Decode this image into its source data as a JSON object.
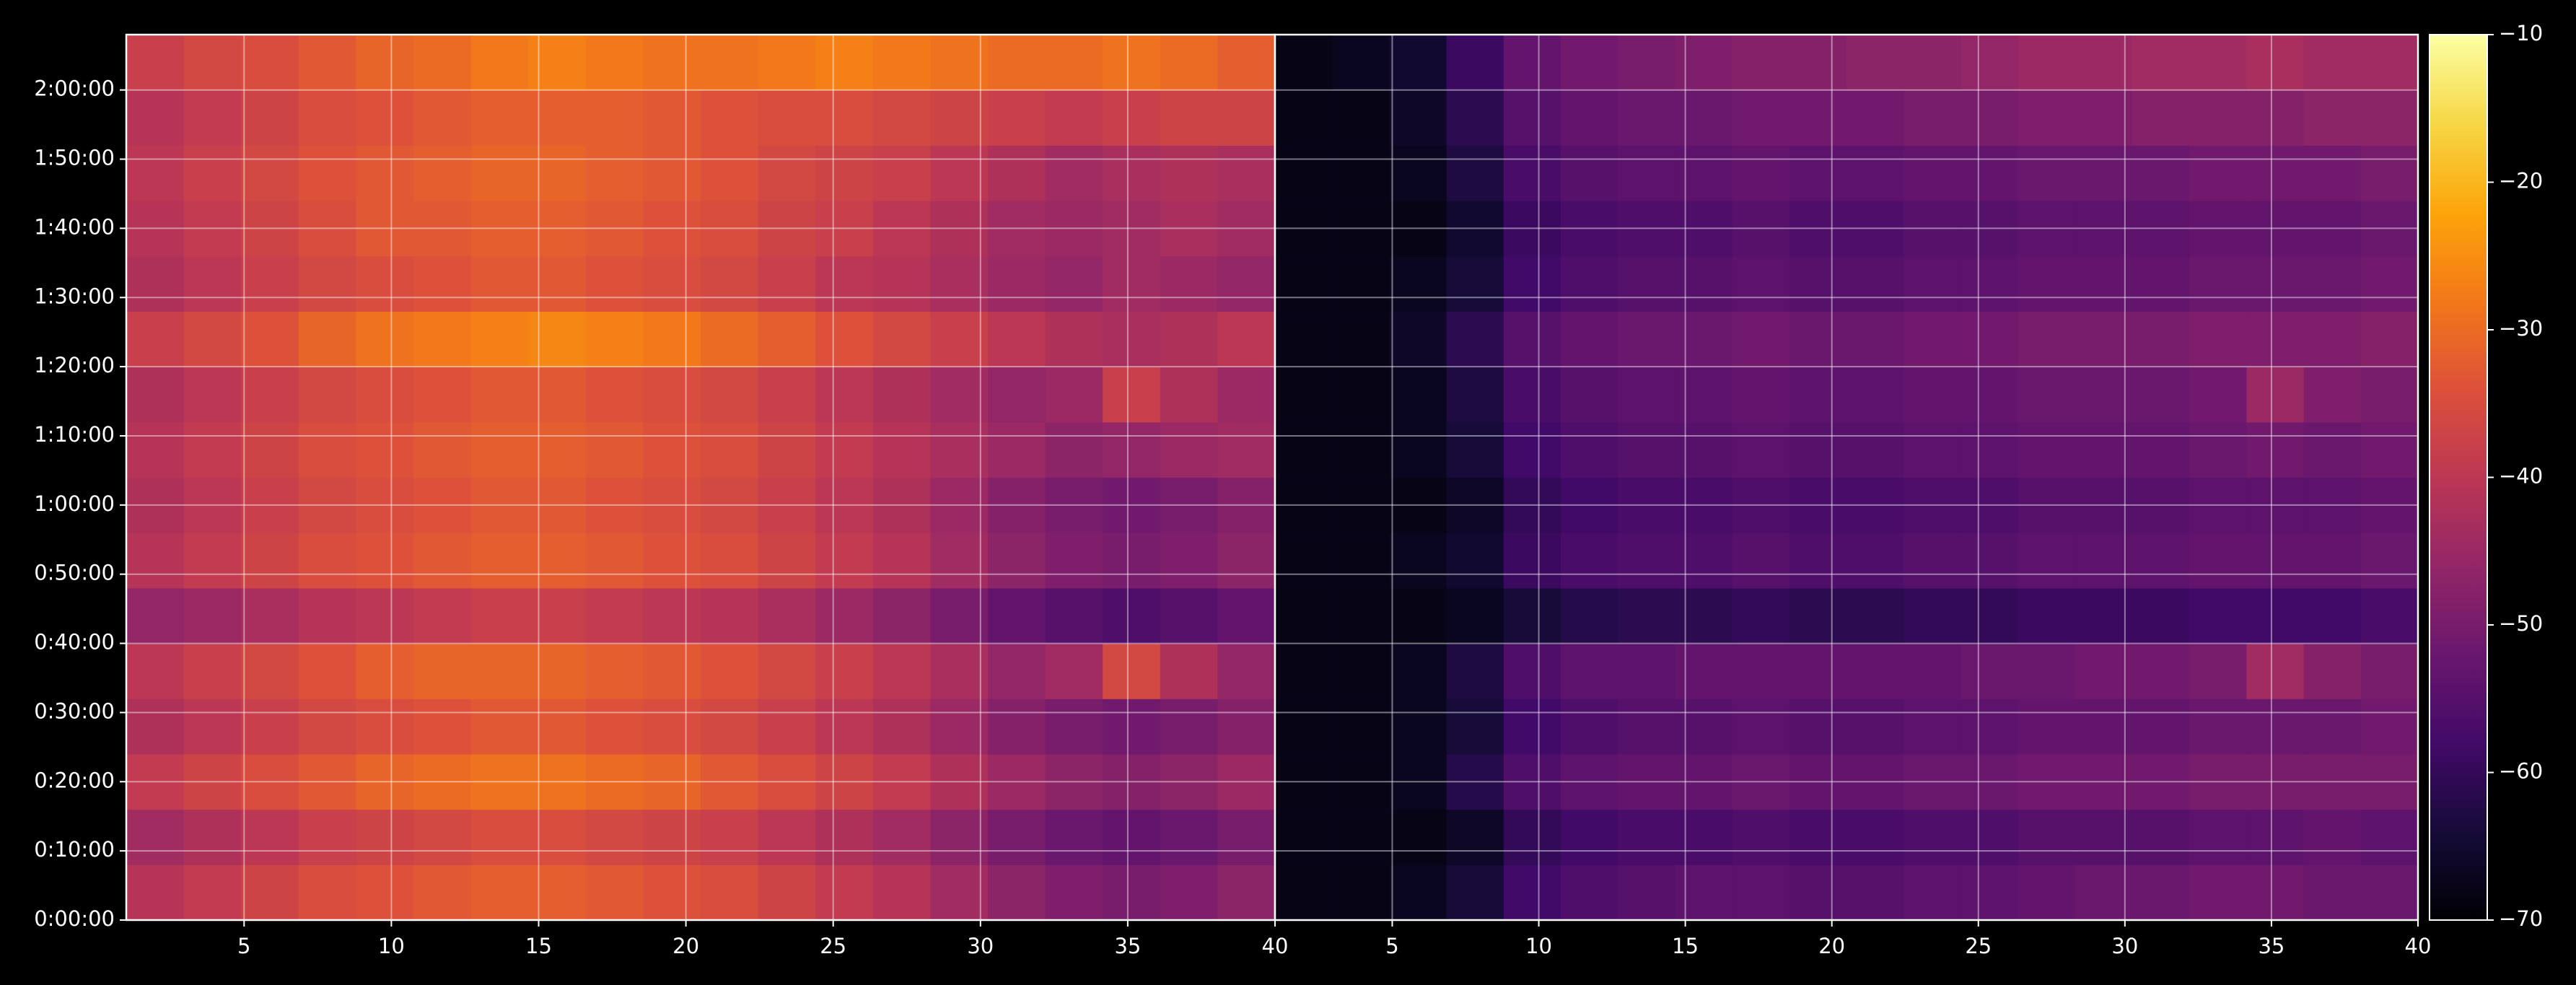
{
  "chart_data": {
    "type": "heatmap",
    "colormap": "inferno",
    "grid": true,
    "ylim": [
      0,
      7680
    ],
    "yticks": [
      {
        "value": 0,
        "label": "0:00:00"
      },
      {
        "value": 600,
        "label": "0:10:00"
      },
      {
        "value": 1200,
        "label": "0:20:00"
      },
      {
        "value": 1800,
        "label": "0:30:00"
      },
      {
        "value": 2400,
        "label": "0:40:00"
      },
      {
        "value": 3000,
        "label": "0:50:00"
      },
      {
        "value": 3600,
        "label": "1:00:00"
      },
      {
        "value": 4200,
        "label": "1:10:00"
      },
      {
        "value": 4800,
        "label": "1:20:00"
      },
      {
        "value": 5400,
        "label": "1:30:00"
      },
      {
        "value": 6000,
        "label": "1:40:00"
      },
      {
        "value": 6600,
        "label": "1:50:00"
      },
      {
        "value": 7200,
        "label": "2:00:00"
      }
    ],
    "colorbar": {
      "lim": [
        -70,
        -10
      ],
      "ticks": [
        {
          "value": -70,
          "label": "−70"
        },
        {
          "value": -60,
          "label": "−60"
        },
        {
          "value": -50,
          "label": "−50"
        },
        {
          "value": -40,
          "label": "−40"
        },
        {
          "value": -30,
          "label": "−30"
        },
        {
          "value": -20,
          "label": "−20"
        },
        {
          "value": -10,
          "label": "−10"
        }
      ]
    },
    "panels": [
      {
        "xlim": [
          1,
          40
        ],
        "xticks": [
          5,
          10,
          15,
          20,
          25,
          30,
          35,
          40
        ],
        "z": [
          [
            -41,
            -39,
            -37,
            -35,
            -34,
            -33,
            -32,
            -32,
            -33,
            -34,
            -35,
            -37,
            -39,
            -41,
            -44,
            -47,
            -49,
            -50,
            -49,
            -47
          ],
          [
            -44,
            -42,
            -40,
            -38,
            -37,
            -36,
            -35,
            -35,
            -36,
            -37,
            -38,
            -40,
            -42,
            -44,
            -47,
            -50,
            -52,
            -53,
            -52,
            -50
          ],
          [
            -39,
            -37,
            -35,
            -33,
            -31,
            -30,
            -29,
            -29,
            -30,
            -31,
            -33,
            -35,
            -37,
            -39,
            -42,
            -45,
            -47,
            -48,
            -47,
            -45
          ],
          [
            -42,
            -40,
            -38,
            -36,
            -35,
            -34,
            -33,
            -33,
            -34,
            -35,
            -36,
            -38,
            -40,
            -42,
            -45,
            -48,
            -50,
            -51,
            -50,
            -48
          ],
          [
            -40,
            -38,
            -36,
            -34,
            -32,
            -31,
            -31,
            -31,
            -32,
            -33,
            -34,
            -36,
            -38,
            -40,
            -43,
            -46,
            -44,
            -36,
            -42,
            -46
          ],
          [
            -46,
            -45,
            -43,
            -41,
            -40,
            -39,
            -38,
            -38,
            -39,
            -40,
            -41,
            -43,
            -45,
            -47,
            -50,
            -53,
            -55,
            -56,
            -55,
            -53
          ],
          [
            -41,
            -39,
            -37,
            -35,
            -34,
            -33,
            -32,
            -32,
            -33,
            -34,
            -35,
            -37,
            -39,
            -41,
            -44,
            -47,
            -49,
            -50,
            -49,
            -47
          ],
          [
            -42,
            -40,
            -38,
            -36,
            -35,
            -34,
            -33,
            -33,
            -34,
            -35,
            -36,
            -38,
            -40,
            -42,
            -45,
            -48,
            -50,
            -51,
            -50,
            -48
          ],
          [
            -41,
            -39,
            -37,
            -35,
            -34,
            -33,
            -32,
            -32,
            -33,
            -34,
            -35,
            -37,
            -39,
            -41,
            -43,
            -45,
            -47,
            -46,
            -45,
            -44
          ],
          [
            -42,
            -40,
            -38,
            -36,
            -35,
            -34,
            -33,
            -33,
            -34,
            -35,
            -36,
            -38,
            -40,
            -42,
            -44,
            -46,
            -45,
            -38,
            -42,
            -45
          ],
          [
            -38,
            -36,
            -34,
            -31,
            -29,
            -28,
            -27,
            -26,
            -27,
            -28,
            -30,
            -32,
            -34,
            -36,
            -38,
            -40,
            -42,
            -43,
            -42,
            -40
          ],
          [
            -42,
            -40,
            -38,
            -36,
            -35,
            -34,
            -33,
            -33,
            -34,
            -35,
            -36,
            -38,
            -40,
            -41,
            -43,
            -45,
            -46,
            -44,
            -45,
            -46
          ],
          [
            -41,
            -39,
            -37,
            -35,
            -33,
            -33,
            -32,
            -32,
            -33,
            -34,
            -35,
            -37,
            -38,
            -40,
            -42,
            -44,
            -45,
            -44,
            -43,
            -44
          ],
          [
            -40,
            -38,
            -36,
            -34,
            -33,
            -32,
            -31,
            -31,
            -32,
            -33,
            -34,
            -36,
            -37,
            -38,
            -40,
            -42,
            -44,
            -43,
            -42,
            -43
          ],
          [
            -41,
            -39,
            -37,
            -35,
            -34,
            -33,
            -32,
            -32,
            -32,
            -33,
            -34,
            -35,
            -35,
            -36,
            -37,
            -38,
            -39,
            -38,
            -37,
            -37
          ],
          [
            -38,
            -36,
            -35,
            -33,
            -31,
            -30,
            -28,
            -27,
            -28,
            -29,
            -29,
            -28,
            -27,
            -28,
            -29,
            -30,
            -30,
            -29,
            -30,
            -32
          ]
        ]
      },
      {
        "xlim": [
          1,
          40
        ],
        "xticks": [
          5,
          10,
          15,
          20,
          25,
          30,
          35,
          40
        ],
        "z": [
          [
            -68,
            -68,
            -67,
            -64,
            -58,
            -56,
            -55,
            -54,
            -54,
            -55,
            -55,
            -54,
            -54,
            -53,
            -52,
            -52,
            -51,
            -51,
            -52,
            -52
          ],
          [
            -68,
            -68,
            -68,
            -66,
            -60,
            -58,
            -57,
            -57,
            -56,
            -57,
            -57,
            -56,
            -56,
            -55,
            -55,
            -55,
            -54,
            -54,
            -53,
            -54
          ],
          [
            -68,
            -68,
            -67,
            -62,
            -56,
            -54,
            -53,
            -53,
            -52,
            -53,
            -53,
            -52,
            -52,
            -51,
            -51,
            -51,
            -50,
            -50,
            -50,
            -50
          ],
          [
            -68,
            -68,
            -67,
            -64,
            -58,
            -56,
            -55,
            -55,
            -54,
            -55,
            -55,
            -54,
            -54,
            -53,
            -53,
            -53,
            -52,
            -52,
            -52,
            -51
          ],
          [
            -68,
            -68,
            -67,
            -63,
            -56,
            -54,
            -54,
            -53,
            -53,
            -53,
            -53,
            -53,
            -52,
            -52,
            -51,
            -51,
            -50,
            -44,
            -48,
            -50
          ],
          [
            -68,
            -68,
            -68,
            -67,
            -64,
            -62,
            -61,
            -61,
            -60,
            -61,
            -61,
            -60,
            -60,
            -59,
            -59,
            -59,
            -58,
            -58,
            -58,
            -57
          ],
          [
            -68,
            -68,
            -67,
            -65,
            -59,
            -57,
            -56,
            -56,
            -55,
            -56,
            -56,
            -55,
            -55,
            -54,
            -54,
            -54,
            -53,
            -53,
            -53,
            -52
          ],
          [
            -68,
            -68,
            -68,
            -66,
            -60,
            -58,
            -57,
            -57,
            -56,
            -57,
            -57,
            -56,
            -56,
            -55,
            -55,
            -55,
            -54,
            -54,
            -54,
            -53
          ],
          [
            -68,
            -68,
            -67,
            -64,
            -58,
            -56,
            -55,
            -55,
            -54,
            -55,
            -55,
            -54,
            -54,
            -53,
            -53,
            -53,
            -52,
            -51,
            -52,
            -51
          ],
          [
            -68,
            -68,
            -67,
            -63,
            -57,
            -55,
            -54,
            -54,
            -53,
            -54,
            -54,
            -53,
            -53,
            -52,
            -52,
            -52,
            -51,
            -45,
            -49,
            -50
          ],
          [
            -68,
            -68,
            -66,
            -61,
            -55,
            -53,
            -52,
            -52,
            -51,
            -52,
            -52,
            -51,
            -51,
            -50,
            -50,
            -50,
            -49,
            -49,
            -49,
            -48
          ],
          [
            -68,
            -68,
            -67,
            -64,
            -58,
            -56,
            -55,
            -55,
            -54,
            -55,
            -55,
            -54,
            -54,
            -53,
            -53,
            -53,
            -52,
            -52,
            -52,
            -51
          ],
          [
            -68,
            -68,
            -68,
            -65,
            -59,
            -57,
            -56,
            -56,
            -55,
            -56,
            -56,
            -55,
            -55,
            -54,
            -54,
            -54,
            -53,
            -53,
            -53,
            -52
          ],
          [
            -68,
            -68,
            -67,
            -63,
            -57,
            -55,
            -54,
            -54,
            -53,
            -54,
            -54,
            -53,
            -53,
            -52,
            -52,
            -52,
            -51,
            -51,
            -51,
            -50
          ],
          [
            -68,
            -68,
            -66,
            -61,
            -55,
            -53,
            -52,
            -52,
            -51,
            -51,
            -51,
            -50,
            -50,
            -49,
            -49,
            -48,
            -48,
            -48,
            -47,
            -47
          ],
          [
            -68,
            -67,
            -65,
            -59,
            -53,
            -51,
            -50,
            -49,
            -48,
            -48,
            -47,
            -47,
            -46,
            -45,
            -45,
            -44,
            -44,
            -43,
            -44,
            -44
          ]
        ]
      }
    ]
  }
}
